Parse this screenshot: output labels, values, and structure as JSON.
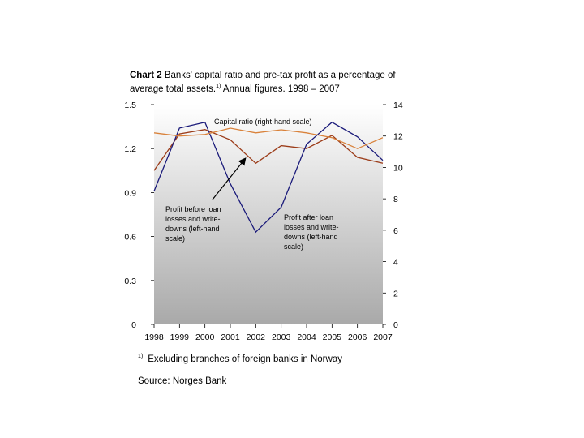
{
  "title": {
    "bold": "Chart 2",
    "text": " Banks' capital ratio and pre-tax profit as a percentage of average total assets.",
    "note_mark": "1)",
    "tail": " Annual figures. 1998 – 2007"
  },
  "footnote": {
    "mark": "1)",
    "text": "Excluding branches of foreign banks in Norway"
  },
  "source": "Source: Norges Bank",
  "chart_data": {
    "type": "line",
    "x": [
      "1998",
      "1999",
      "2000",
      "2001",
      "2002",
      "2003",
      "2004",
      "2005",
      "2006",
      "2007"
    ],
    "left_axis": {
      "ticks": [
        0,
        0.3,
        0.6,
        0.9,
        1.2,
        1.5
      ],
      "labels": [
        "0",
        "0.3",
        "0.6",
        "0.9",
        "1.2",
        "1.5"
      ],
      "range": [
        0,
        1.5
      ]
    },
    "right_axis": {
      "ticks": [
        0,
        2,
        4,
        6,
        8,
        10,
        12,
        14
      ],
      "labels": [
        "0",
        "2",
        "4",
        "6",
        "8",
        "10",
        "12",
        "14"
      ],
      "range": [
        0,
        14
      ]
    },
    "series": [
      {
        "name": "Profit before loan losses and write-downs (left-hand scale)",
        "axis": "left",
        "color": "#9b3b18",
        "values": [
          1.05,
          1.3,
          1.33,
          1.26,
          1.1,
          1.22,
          1.2,
          1.29,
          1.14,
          1.1
        ]
      },
      {
        "name": "Profit after loan losses and write-downs (left-hand scale)",
        "axis": "left",
        "color": "#1a1a7a",
        "values": [
          0.91,
          1.34,
          1.38,
          0.96,
          0.63,
          0.8,
          1.23,
          1.38,
          1.28,
          1.12
        ]
      },
      {
        "name": "Capital ratio (right-hand scale)",
        "axis": "right",
        "color": "#d9823b",
        "values": [
          12.2,
          12.0,
          12.1,
          12.5,
          12.2,
          12.4,
          12.2,
          11.9,
          11.2,
          11.9
        ]
      }
    ],
    "annotations": [
      {
        "id": "capital",
        "text": [
          "Capital ratio (right-hand scale)"
        ]
      },
      {
        "id": "before",
        "text": [
          "Profit before loan",
          "losses and write-",
          "downs (left-hand",
          "scale)"
        ]
      },
      {
        "id": "after",
        "text": [
          "Profit after loan",
          "losses and write-",
          "downs (left-hand",
          "scale)"
        ]
      }
    ],
    "plot_fill": "gradient grey"
  }
}
